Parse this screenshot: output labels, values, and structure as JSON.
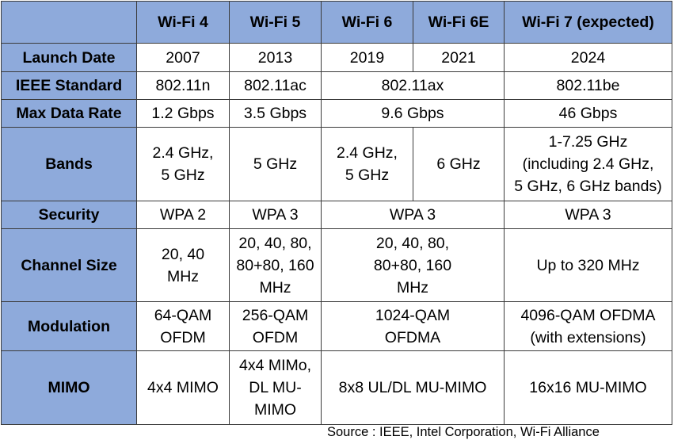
{
  "columns": [
    "",
    "Wi-Fi 4",
    "Wi-Fi 5",
    "Wi-Fi 6",
    "Wi-Fi 6E",
    "Wi-Fi 7 (expected)"
  ],
  "rows": {
    "launch": {
      "label": "Launch Date",
      "wifi4": "2007",
      "wifi5": "2013",
      "wifi6": "2019",
      "wifi6e": "2021",
      "wifi7": "2024"
    },
    "ieee": {
      "label": "IEEE Standard",
      "wifi4": "802.11n",
      "wifi5": "802.11ac",
      "wifi6_6e": "802.11ax",
      "wifi7": "802.11be"
    },
    "rate": {
      "label": "Max Data Rate",
      "wifi4": "1.2 Gbps",
      "wifi5": "3.5 Gbps",
      "wifi6_6e": "9.6 Gbps",
      "wifi7": "46 Gbps"
    },
    "bands": {
      "label": "Bands",
      "wifi4": [
        "2.4 GHz,",
        "5 GHz"
      ],
      "wifi5": "5 GHz",
      "wifi6": [
        "2.4 GHz,",
        "5 GHz"
      ],
      "wifi6e": "6 GHz",
      "wifi7": [
        "1-7.25 GHz",
        "(including 2.4 GHz,",
        "5 GHz, 6 GHz bands)"
      ]
    },
    "security": {
      "label": "Security",
      "wifi4": "WPA 2",
      "wifi5": "WPA 3",
      "wifi6_6e": "WPA 3",
      "wifi7": "WPA 3"
    },
    "channel": {
      "label": "Channel Size",
      "wifi4": [
        "20, 40",
        "MHz"
      ],
      "wifi5": [
        "20, 40, 80,",
        "80+80, 160",
        "MHz"
      ],
      "wifi6_6e": [
        "20, 40, 80,",
        "80+80, 160",
        "MHz"
      ],
      "wifi7": "Up to 320 MHz"
    },
    "modulation": {
      "label": "Modulation",
      "wifi4": [
        "64-QAM",
        "OFDM"
      ],
      "wifi5": [
        "256-QAM",
        "OFDM"
      ],
      "wifi6_6e": [
        "1024-QAM",
        "OFDMA"
      ],
      "wifi7": [
        "4096-QAM OFDMA",
        "(with extensions)"
      ]
    },
    "mimo": {
      "label": "MIMO",
      "wifi4": "4x4 MIMO",
      "wifi5": [
        "4x4 MIMo,",
        "DL MU-",
        "MIMO"
      ],
      "wifi6_6e": "8x8 UL/DL MU-MIMO",
      "wifi7": "16x16 MU-MIMO"
    }
  },
  "source": "Source : IEEE, Intel Corporation, Wi-Fi Alliance",
  "colors": {
    "header_bg": "#8eaadb",
    "cell_bg": "#ffffff",
    "border": "#3b3b3b"
  }
}
